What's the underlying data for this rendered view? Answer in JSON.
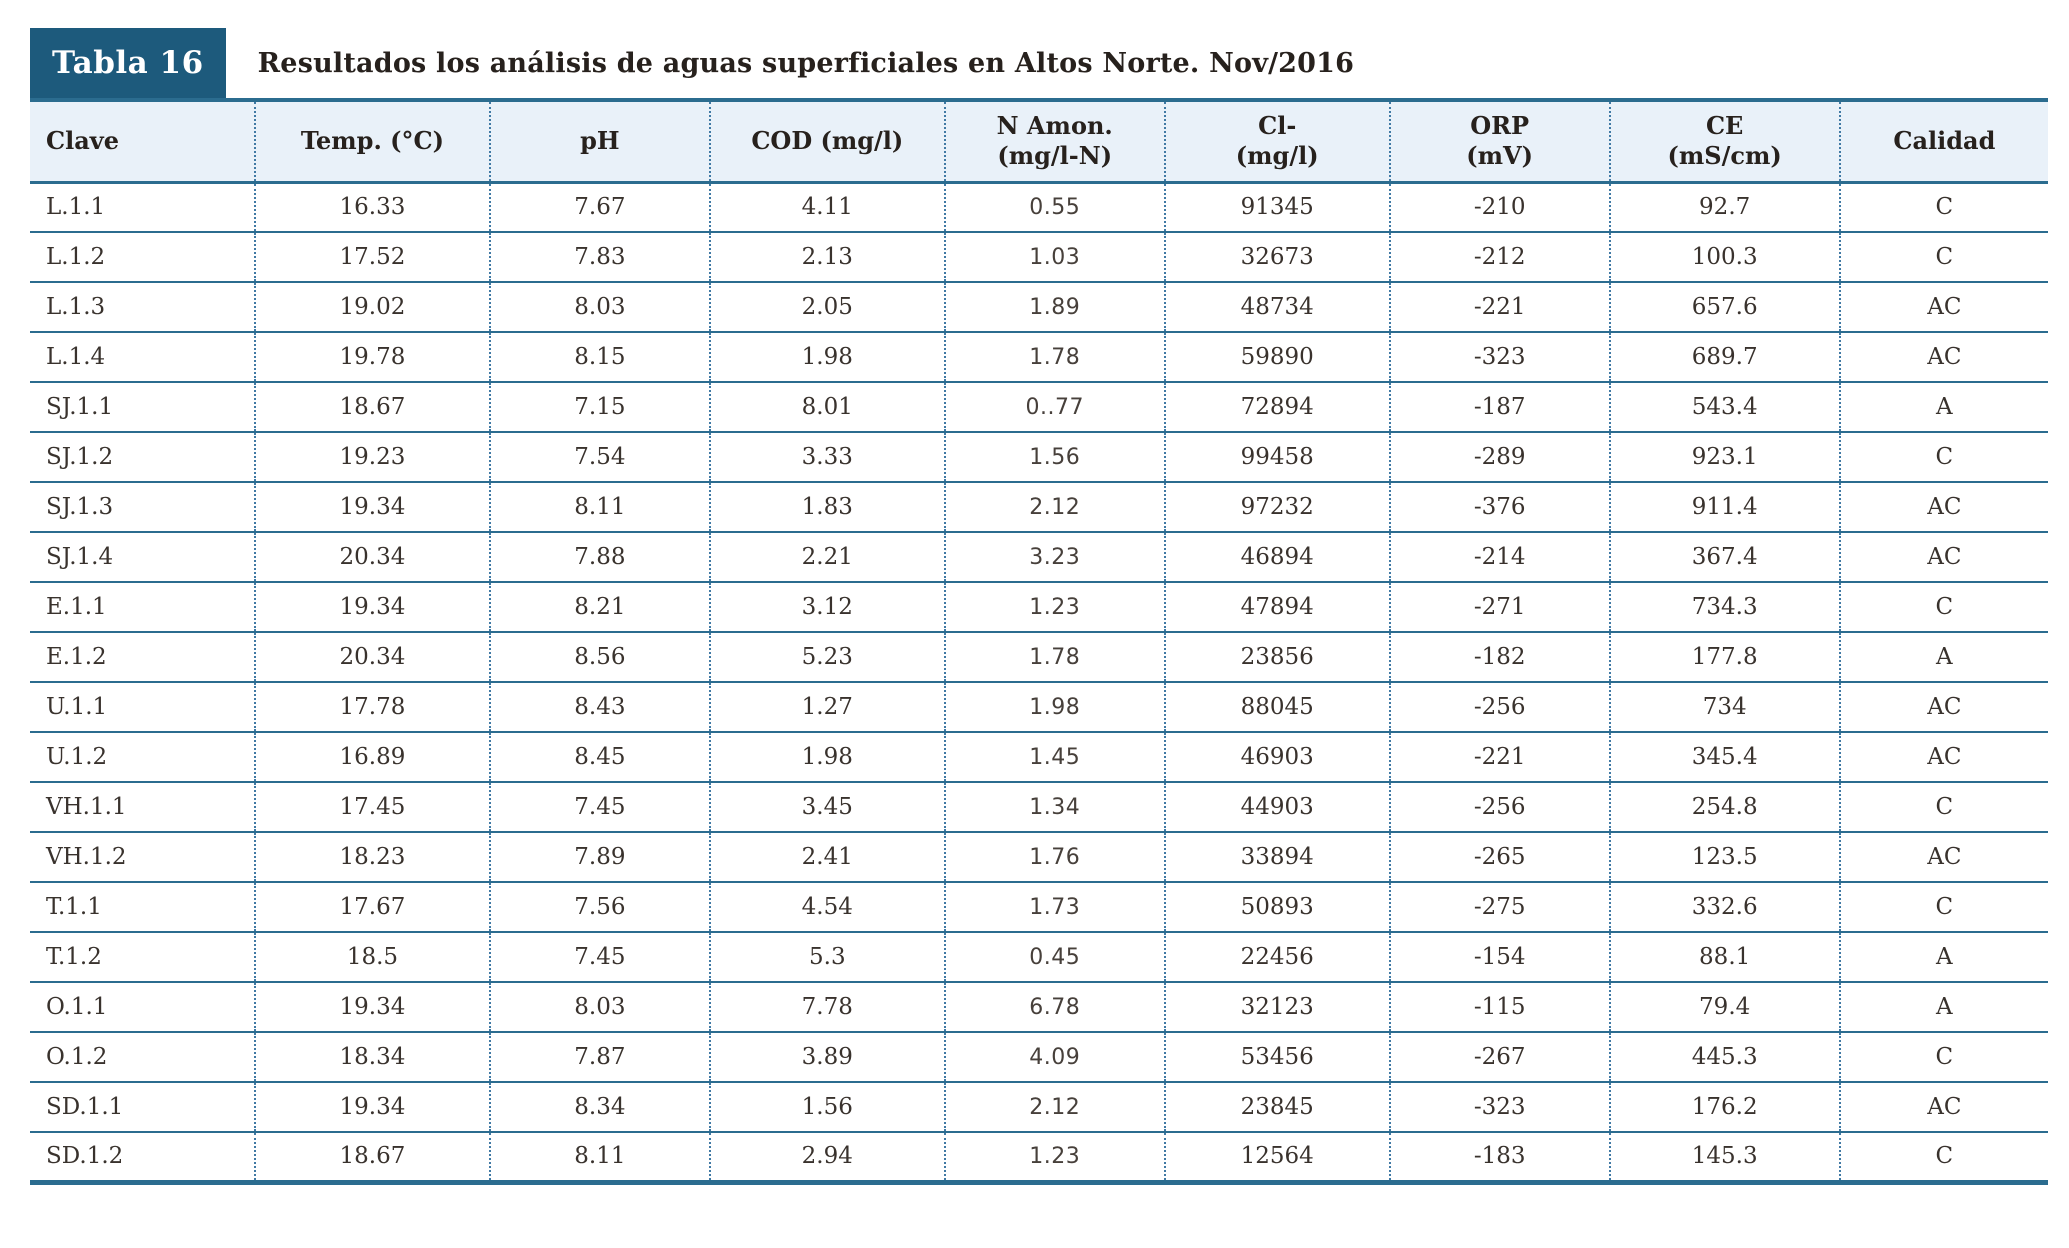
{
  "caption": {
    "label": "Tabla 16",
    "title": "Resultados los análisis de aguas superficiales en Altos Norte. Nov/2016"
  },
  "table": {
    "columns": [
      {
        "key": "clave",
        "label": "Clave"
      },
      {
        "key": "temp",
        "label": "Temp. (°C)"
      },
      {
        "key": "ph",
        "label": "pH"
      },
      {
        "key": "cod",
        "label": "COD (mg/l)"
      },
      {
        "key": "n_amon",
        "label": "N Amon.\n(mg/l-N)"
      },
      {
        "key": "cl",
        "label": "Cl-\n(mg/l)"
      },
      {
        "key": "orp",
        "label": "ORP\n(mV)"
      },
      {
        "key": "ce",
        "label": "CE\n(mS/cm)"
      },
      {
        "key": "calidad",
        "label": "Calidad"
      }
    ],
    "rows": [
      [
        "L.1.1",
        "16.33",
        "7.67",
        "4.11",
        "0.55",
        "91345",
        "-210",
        "92.7",
        "C"
      ],
      [
        "L.1.2",
        "17.52",
        "7.83",
        "2.13",
        "1.03",
        "32673",
        "-212",
        "100.3",
        "C"
      ],
      [
        "L.1.3",
        "19.02",
        "8.03",
        "2.05",
        "1.89",
        "48734",
        "-221",
        "657.6",
        "AC"
      ],
      [
        "L.1.4",
        "19.78",
        "8.15",
        "1.98",
        "1.78",
        "59890",
        "-323",
        "689.7",
        "AC"
      ],
      [
        "SJ.1.1",
        "18.67",
        "7.15",
        "8.01",
        "0..77",
        "72894",
        "-187",
        "543.4",
        "A"
      ],
      [
        "SJ.1.2",
        "19.23",
        "7.54",
        "3.33",
        "1.56",
        "99458",
        "-289",
        "923.1",
        "C"
      ],
      [
        "SJ.1.3",
        "19.34",
        "8.11",
        "1.83",
        "2.12",
        "97232",
        "-376",
        "911.4",
        "AC"
      ],
      [
        "SJ.1.4",
        "20.34",
        "7.88",
        "2.21",
        "3.23",
        "46894",
        "-214",
        "367.4",
        "AC"
      ],
      [
        "E.1.1",
        "19.34",
        "8.21",
        "3.12",
        "1.23",
        "47894",
        "-271",
        "734.3",
        "C"
      ],
      [
        "E.1.2",
        "20.34",
        "8.56",
        "5.23",
        "1.78",
        "23856",
        "-182",
        "177.8",
        "A"
      ],
      [
        "U.1.1",
        "17.78",
        "8.43",
        "1.27",
        "1.98",
        "88045",
        "-256",
        "734",
        "AC"
      ],
      [
        "U.1.2",
        "16.89",
        "8.45",
        "1.98",
        "1.45",
        "46903",
        "-221",
        "345.4",
        "AC"
      ],
      [
        "VH.1.1",
        "17.45",
        "7.45",
        "3.45",
        "1.34",
        "44903",
        "-256",
        "254.8",
        "C"
      ],
      [
        "VH.1.2",
        "18.23",
        "7.89",
        "2.41",
        "1.76",
        "33894",
        "-265",
        "123.5",
        "AC"
      ],
      [
        "T.1.1",
        "17.67",
        "7.56",
        "4.54",
        "1.73",
        "50893",
        "-275",
        "332.6",
        "C"
      ],
      [
        "T.1.2",
        "18.5",
        "7.45",
        "5.3",
        "0.45",
        "22456",
        "-154",
        "88.1",
        "A"
      ],
      [
        "O.1.1",
        "19.34",
        "8.03",
        "7.78",
        "6.78",
        "32123",
        "-115",
        "79.4",
        "A"
      ],
      [
        "O.1.2",
        "18.34",
        "7.87",
        "3.89",
        "4.09",
        "53456",
        "-267",
        "445.3",
        "C"
      ],
      [
        "SD.1.1",
        "19.34",
        "8.34",
        "1.56",
        "2.12",
        "23845",
        "-323",
        "176.2",
        "AC"
      ],
      [
        "SD.1.2",
        "18.67",
        "8.11",
        "2.94",
        "1.23",
        "12564",
        "-183",
        "145.3",
        "C"
      ]
    ]
  },
  "colors": {
    "accent": "#1d5a7c",
    "line": "#2b6c8f",
    "dotted": "#4079a4",
    "header_bg": "#e9f1f9",
    "text": "#39322d"
  }
}
